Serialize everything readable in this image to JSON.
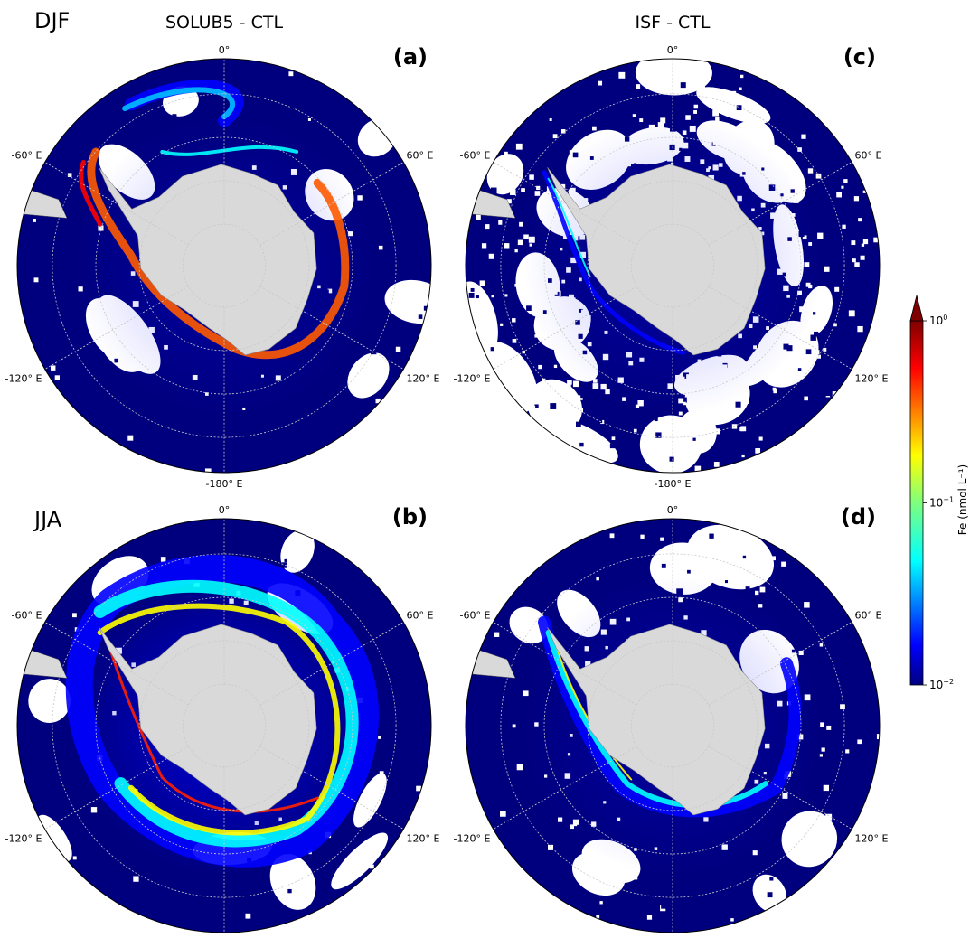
{
  "figure": {
    "season_labels": {
      "top": "DJF",
      "bottom": "JJA"
    },
    "column_titles": {
      "left": "SOLUB5 - CTL",
      "right": "ISF - CTL"
    },
    "panels": [
      {
        "id": "a",
        "label": "(a)",
        "season": "DJF",
        "experiment": "SOLUB5 - CTL"
      },
      {
        "id": "b",
        "label": "(b)",
        "season": "JJA",
        "experiment": "SOLUB5 - CTL"
      },
      {
        "id": "c",
        "label": "(c)",
        "season": "DJF",
        "experiment": "ISF - CTL"
      },
      {
        "id": "d",
        "label": "(d)",
        "season": "JJA",
        "experiment": "ISF - CTL"
      }
    ],
    "longitude_labels": {
      "top": "0°",
      "upper_left": "-60° E",
      "upper_right": "60° E",
      "lower_left": "-120° E",
      "lower_right": "120° E",
      "bottom": "-180° E"
    },
    "colorbar": {
      "label": "Fe (nmol L⁻¹)",
      "scale": "log",
      "range": [
        0.01,
        1
      ],
      "ticks": [
        {
          "value": 1,
          "mantissa": "10",
          "exp": "0"
        },
        {
          "value": 0.1,
          "mantissa": "10",
          "exp": "−1"
        },
        {
          "value": 0.01,
          "mantissa": "10",
          "exp": "−2"
        }
      ],
      "extend": "max",
      "colormap": "jet",
      "colors": [
        "#00007f",
        "#0000ff",
        "#007fff",
        "#00ffff",
        "#7fff7f",
        "#ffff00",
        "#ff7f00",
        "#ff0000",
        "#7f0000"
      ]
    },
    "map_colors": {
      "ocean_background": "#00007f",
      "antarctica": "#d9d9d9",
      "no_data": "#ffffff",
      "grid_lines": "#c8c8c8"
    }
  }
}
